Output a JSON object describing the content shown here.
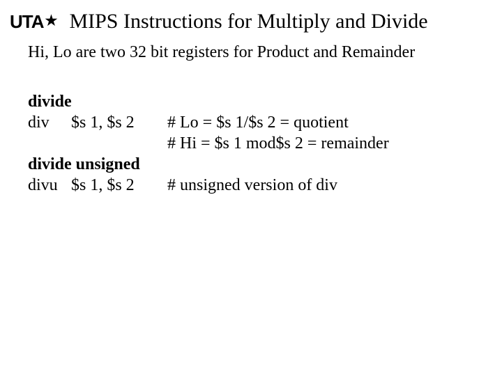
{
  "logo": {
    "text": "UTA",
    "star": "★"
  },
  "title": "MIPS Instructions for Multiply and Divide",
  "subtitle": "Hi, Lo are two 32 bit registers for Product and Remainder",
  "sections": {
    "divide": {
      "heading": "divide",
      "mnemonic": "div",
      "operands": "$s 1, $s 2",
      "comments": [
        "# Lo = $s 1/$s 2 = quotient",
        "# Hi = $s 1 mod$s 2 = remainder"
      ]
    },
    "divu": {
      "heading": "divide unsigned",
      "mnemonic": "divu",
      "operands": "$s 1, $s 2",
      "comments": [
        "# unsigned version of div"
      ]
    }
  },
  "style": {
    "background_color": "#ffffff",
    "text_color": "#000000",
    "title_fontsize": 30,
    "body_fontsize": 24,
    "font_family": "Times New Roman"
  }
}
